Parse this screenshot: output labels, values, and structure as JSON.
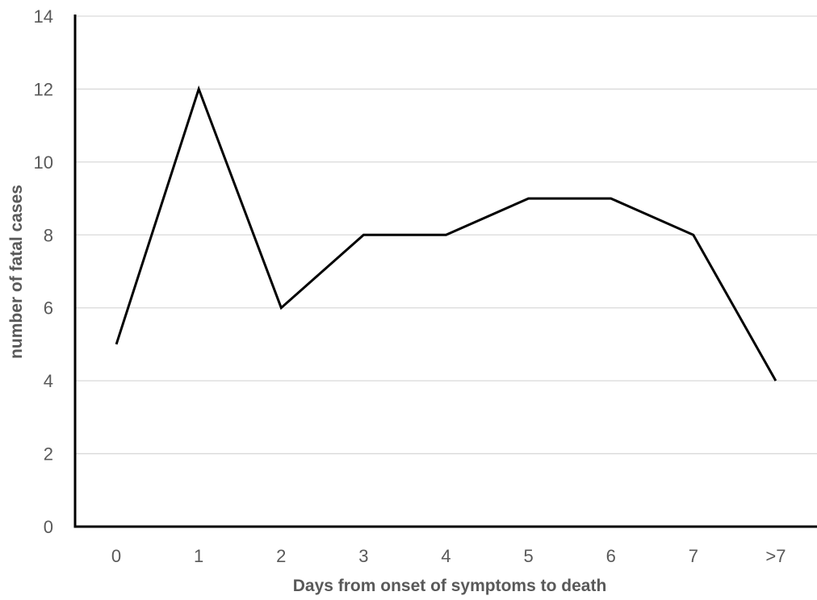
{
  "chart_data": {
    "type": "line",
    "categories": [
      "0",
      "1",
      "2",
      "3",
      "4",
      "5",
      "6",
      "7",
      ">7"
    ],
    "series": [
      {
        "values": [
          5,
          12,
          6,
          8,
          8,
          9,
          9,
          8,
          4
        ]
      }
    ],
    "xlabel": "Days from onset of symptoms to death",
    "ylabel": "number of fatal cases",
    "ylim": [
      0,
      14
    ],
    "yticks": [
      0,
      2,
      4,
      6,
      8,
      10,
      12,
      14
    ],
    "grid": true,
    "legend": "none",
    "colors": {
      "line": "#000000",
      "grid": "#d9d9d9",
      "axis": "#000000",
      "text": "#595959"
    }
  }
}
